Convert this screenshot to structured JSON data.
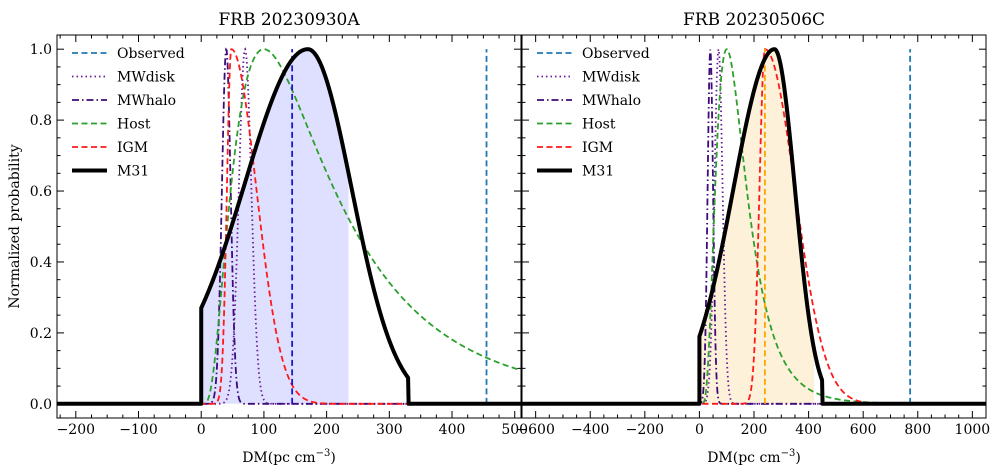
{
  "chart_data": [
    {
      "type": "line",
      "title": "FRB 20230930A",
      "xlabel": "DM(pc cm",
      "xlabel_sup": "−3",
      "xlabel_close": ")",
      "ylabel": "Normalized probability",
      "xlim": [
        -230,
        510
      ],
      "ylim": [
        -0.04,
        1.04
      ],
      "xticks": [
        -200,
        -100,
        0,
        100,
        200,
        300,
        400,
        500
      ],
      "xtick_labels": [
        "−200",
        "−100",
        "0",
        "100",
        "200",
        "300",
        "400",
        "500"
      ],
      "yticks": [
        0.0,
        0.2,
        0.4,
        0.6,
        0.8,
        1.0
      ],
      "ytick_labels": [
        "0.0",
        "0.2",
        "0.4",
        "0.6",
        "0.8",
        "1.0"
      ],
      "legend": [
        "Observed",
        "MWdisk",
        "MWhalo",
        "Host",
        "IGM",
        "M31"
      ],
      "legend_position": "top-left",
      "colors": {
        "observed": "#1f77b4",
        "mwdisk": "#6a1b9a",
        "mwhalo": "#3d0b7a",
        "host": "#2ca02c",
        "igm": "#ff1a1a",
        "m31": "#000000",
        "shade": "#dfe0ff",
        "median": "#1a1acc"
      },
      "observed_dm": 455,
      "mwdisk": {
        "peak": 70,
        "width_left": 10,
        "width_right": 10
      },
      "mwhalo": {
        "peak": 40,
        "width_left": 7,
        "width_right": 7
      },
      "host": {
        "peak": 100,
        "sigma_log": 0.75
      },
      "igm": {
        "peak": 48,
        "width_left": 7,
        "width_right": 40
      },
      "m31": {
        "peak": 170,
        "start": 0,
        "start_value": 0.27,
        "width_left": 100,
        "width_right": 70,
        "end": 330
      },
      "shade_range": [
        0,
        235
      ],
      "median_line": 145,
      "median_color": "median"
    },
    {
      "type": "line",
      "title": "FRB 20230506C",
      "xlabel": "DM(pc cm",
      "xlabel_sup": "−3",
      "xlabel_close": ")",
      "ylabel": "",
      "xlim": [
        -650,
        1050
      ],
      "ylim": [
        -0.04,
        1.04
      ],
      "xticks": [
        -600,
        -400,
        -200,
        0,
        200,
        400,
        600,
        800,
        1000
      ],
      "xtick_labels": [
        "−600",
        "−400",
        "−200",
        "0",
        "200",
        "400",
        "600",
        "800",
        "1000"
      ],
      "yticks": [
        0.0,
        0.2,
        0.4,
        0.6,
        0.8,
        1.0
      ],
      "ytick_labels": [],
      "legend": [
        "Observed",
        "MWdisk",
        "MWhalo",
        "Host",
        "IGM",
        "M31"
      ],
      "legend_position": "top-left",
      "colors": {
        "observed": "#1f77b4",
        "mwdisk": "#6a1b9a",
        "mwhalo": "#3d0b7a",
        "host": "#2ca02c",
        "igm": "#ff1a1a",
        "m31": "#000000",
        "shade": "#fdf1d9",
        "median": "#ffa500"
      },
      "observed_dm": 772,
      "mwdisk": {
        "peak": 70,
        "width_left": 15,
        "width_right": 15
      },
      "mwhalo": {
        "peak": 40,
        "width_left": 10,
        "width_right": 10
      },
      "host": {
        "peak": 100,
        "sigma_log": 0.55
      },
      "igm": {
        "peak": 240,
        "width_left": 20,
        "width_right": 110
      },
      "m31": {
        "peak": 275,
        "start": 0,
        "start_value": 0.19,
        "width_left": 150,
        "width_right": 75,
        "end": 450
      },
      "shade_range": [
        0,
        420
      ],
      "median_line": 240,
      "median_color": "median"
    }
  ]
}
